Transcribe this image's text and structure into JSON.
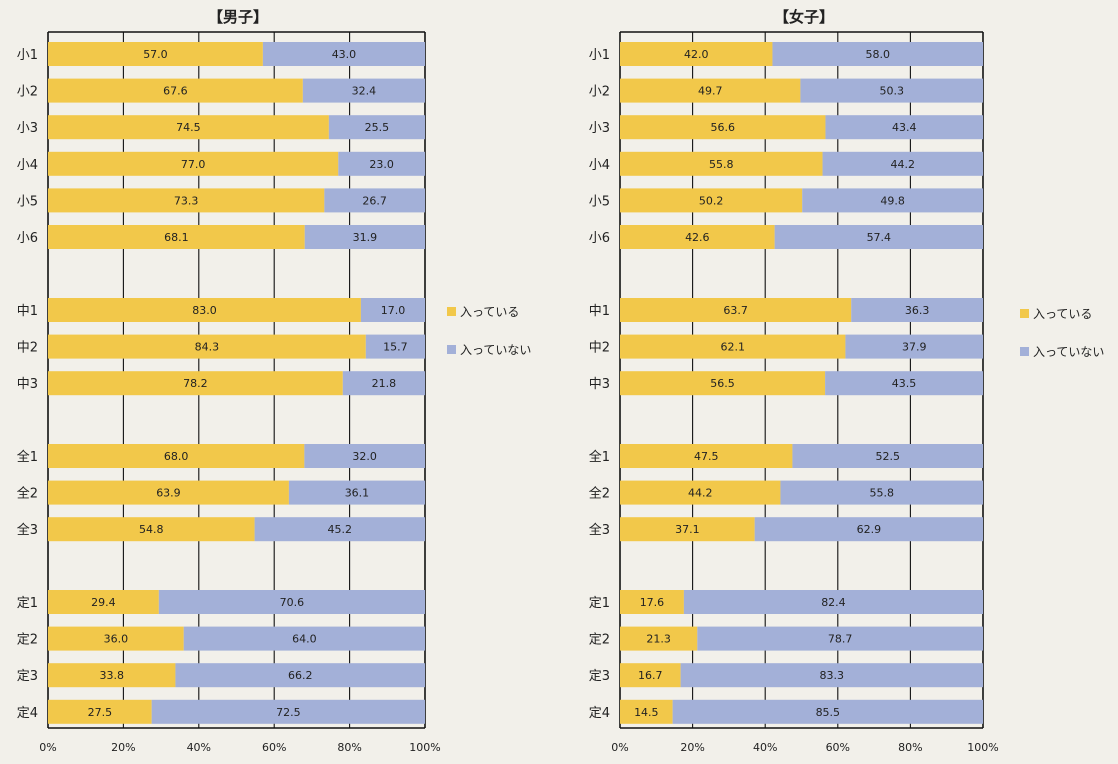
{
  "colors": {
    "in": "#f2c84a",
    "out": "#a3b0d8",
    "grid": "#111111",
    "background": "#f2f0ea"
  },
  "chart_data": [
    {
      "type": "bar",
      "orientation": "horizontal",
      "stacked": true,
      "title": "【男子】",
      "xlim": [
        0,
        100
      ],
      "ticks": [
        "0%",
        "20%",
        "40%",
        "60%",
        "80%",
        "100%"
      ],
      "legend_position": "right",
      "groups": [
        [
          "小1",
          "小2",
          "小3",
          "小4",
          "小5",
          "小6"
        ],
        [
          "中1",
          "中2",
          "中3"
        ],
        [
          "全1",
          "全2",
          "全3"
        ],
        [
          "定1",
          "定2",
          "定3",
          "定4"
        ]
      ],
      "categories": [
        "小1",
        "小2",
        "小3",
        "小4",
        "小5",
        "小6",
        "中1",
        "中2",
        "中3",
        "全1",
        "全2",
        "全3",
        "定1",
        "定2",
        "定3",
        "定4"
      ],
      "series": [
        {
          "name": "入っている",
          "values": [
            57.0,
            67.6,
            74.5,
            77.0,
            73.3,
            68.1,
            83.0,
            84.3,
            78.2,
            68.0,
            63.9,
            54.8,
            29.4,
            36.0,
            33.8,
            27.5
          ]
        },
        {
          "name": "入っていない",
          "values": [
            43.0,
            32.4,
            25.5,
            23.0,
            26.7,
            31.9,
            17.0,
            15.7,
            21.8,
            32.0,
            36.1,
            45.2,
            70.6,
            64.0,
            66.2,
            72.5
          ]
        }
      ]
    },
    {
      "type": "bar",
      "orientation": "horizontal",
      "stacked": true,
      "title": "【女子】",
      "xlim": [
        0,
        100
      ],
      "ticks": [
        "0%",
        "20%",
        "40%",
        "60%",
        "80%",
        "100%"
      ],
      "legend_position": "right",
      "groups": [
        [
          "小1",
          "小2",
          "小3",
          "小4",
          "小5",
          "小6"
        ],
        [
          "中1",
          "中2",
          "中3"
        ],
        [
          "全1",
          "全2",
          "全3"
        ],
        [
          "定1",
          "定2",
          "定3",
          "定4"
        ]
      ],
      "categories": [
        "小1",
        "小2",
        "小3",
        "小4",
        "小5",
        "小6",
        "中1",
        "中2",
        "中3",
        "全1",
        "全2",
        "全3",
        "定1",
        "定2",
        "定3",
        "定4"
      ],
      "series": [
        {
          "name": "入っている",
          "values": [
            42.0,
            49.7,
            56.6,
            55.8,
            50.2,
            42.6,
            63.7,
            62.1,
            56.5,
            47.5,
            44.2,
            37.1,
            17.6,
            21.3,
            16.7,
            14.5
          ]
        },
        {
          "name": "入っていない",
          "values": [
            58.0,
            50.3,
            43.4,
            44.2,
            49.8,
            57.4,
            36.3,
            37.9,
            43.5,
            52.5,
            55.8,
            62.9,
            82.4,
            78.7,
            83.3,
            85.5
          ]
        }
      ]
    }
  ]
}
